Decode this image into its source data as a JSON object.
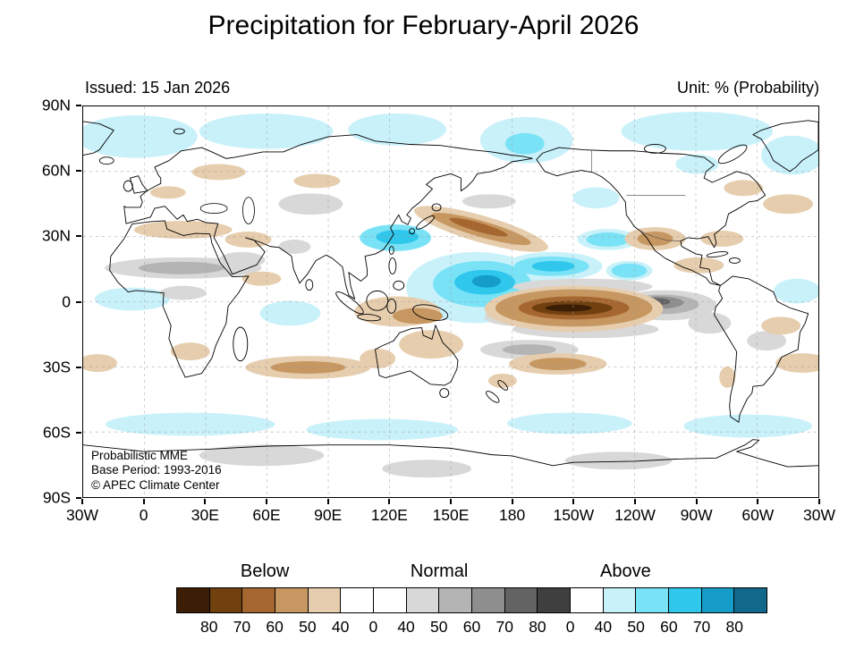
{
  "title": "Precipitation for February-April 2026",
  "header": {
    "issued": "Issued: 15 Jan 2026",
    "unit": "Unit: % (Probability)"
  },
  "map": {
    "lat_tick_labels": [
      "90N",
      "60N",
      "30N",
      "0",
      "30S",
      "60S",
      "90S"
    ],
    "lon_tick_labels": [
      "30W",
      "0",
      "30E",
      "60E",
      "90E",
      "120E",
      "150E",
      "180",
      "150W",
      "120W",
      "90W",
      "60W",
      "30W"
    ],
    "annotation_lines": [
      "Probabilistic MME",
      "Base Period: 1993-2016",
      "© APEC Climate Center"
    ],
    "features": [
      {
        "region": "central equatorial Pacific",
        "category": "Below",
        "peak_probability": ">80"
      },
      {
        "region": "eastern equatorial Pacific",
        "category": "Normal",
        "peak_probability": "70-80"
      },
      {
        "region": "western tropical Pacific",
        "category": "Above",
        "peak_probability": "70-80"
      },
      {
        "region": "East Asia around Japan",
        "category": "Above",
        "peak_probability": "60-70"
      },
      {
        "region": "North Pacific 30-40N band",
        "category": "Below",
        "peak_probability": "60-70"
      },
      {
        "region": "Arctic high latitudes",
        "category": "Above",
        "peak_probability": "40-50"
      },
      {
        "region": "Sahel Africa",
        "category": "Normal",
        "peak_probability": "50-60"
      },
      {
        "region": "southern subtropical oceans",
        "category": "Below",
        "peak_probability": "50-60"
      },
      {
        "region": "Southern Ocean near 60S",
        "category": "Above",
        "peak_probability": "40-50"
      }
    ]
  },
  "legend": {
    "categories": [
      {
        "label": "Below",
        "position_pct": 15
      },
      {
        "label": "Normal",
        "position_pct": 44.5
      },
      {
        "label": "Above",
        "position_pct": 76
      }
    ],
    "tick_labels": [
      "80",
      "70",
      "60",
      "50",
      "40",
      "0",
      "40",
      "50",
      "60",
      "70",
      "80",
      "0",
      "40",
      "50",
      "60",
      "70",
      "80"
    ],
    "swatch_colors": [
      "#3b1e05",
      "#70400f",
      "#a5662f",
      "#c79761",
      "#e6cdad",
      "#ffffff",
      "#ffffff",
      "#d8d8d8",
      "#b4b4b4",
      "#8e8e8e",
      "#636363",
      "#3f3f3f",
      "#ffffff",
      "#c9f1fa",
      "#7ae2f6",
      "#2fc8ec",
      "#159cc8",
      "#10688a"
    ]
  },
  "colors": {
    "below_80_plus": "#3b1e05",
    "below_70_80": "#70400f",
    "below_60_70": "#a5662f",
    "below_50_60": "#c79761",
    "below_40_50": "#e6cdad",
    "normal_40_50": "#d8d8d8",
    "normal_50_60": "#b4b4b4",
    "normal_60_70": "#8e8e8e",
    "normal_70_80": "#636363",
    "normal_80_plus": "#3f3f3f",
    "above_40_50": "#c9f1fa",
    "above_50_60": "#7ae2f6",
    "above_60_70": "#2fc8ec",
    "above_70_80": "#159cc8",
    "above_80_plus": "#10688a",
    "land_outline": "#000000",
    "grid": "#9a9a9a"
  }
}
